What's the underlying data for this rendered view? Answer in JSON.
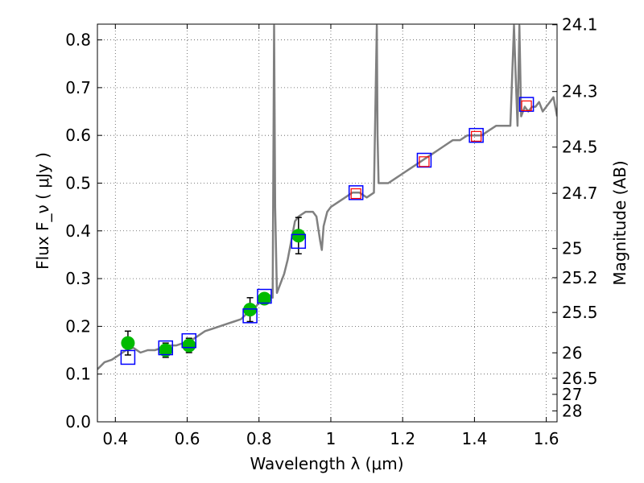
{
  "chart_data": {
    "type": "scatter",
    "xlabel": "Wavelength  λ (μm)",
    "ylabel": "Flux  F_ν  ( μJy )",
    "y2label": "Magnitude (AB)",
    "xlim": [
      0.35,
      1.63
    ],
    "ylim": [
      0.0,
      0.833
    ],
    "grid": true,
    "x_ticks": [
      0.4,
      0.6,
      0.8,
      1.0,
      1.2,
      1.4,
      1.6
    ],
    "x_tick_labels": [
      "0.4",
      "0.6",
      "0.8",
      "1",
      "1.2",
      "1.4",
      "1.6"
    ],
    "y_ticks": [
      0.0,
      0.1,
      0.2,
      0.3,
      0.4,
      0.5,
      0.6,
      0.7,
      0.8
    ],
    "y_tick_labels": [
      "0.0",
      "0.1",
      "0.2",
      "0.3",
      "0.4",
      "0.5",
      "0.6",
      "0.7",
      "0.8"
    ],
    "y2_ticks": [
      24.1,
      24.3,
      24.5,
      24.7,
      25,
      25.2,
      25.5,
      26,
      26.5,
      27,
      28
    ],
    "y2_tick_labels": [
      "24.1",
      "24.3",
      "24.5",
      "24.7",
      "25",
      "25.2",
      "25.5",
      "26",
      "26.5",
      "27",
      "28"
    ],
    "model_spectrum": {
      "color": "#808080",
      "x": [
        0.35,
        0.37,
        0.39,
        0.41,
        0.43,
        0.45,
        0.47,
        0.49,
        0.51,
        0.53,
        0.55,
        0.57,
        0.59,
        0.61,
        0.63,
        0.65,
        0.67,
        0.69,
        0.71,
        0.73,
        0.75,
        0.77,
        0.79,
        0.81,
        0.83,
        0.838,
        0.842,
        0.845,
        0.85,
        0.86,
        0.87,
        0.88,
        0.89,
        0.9,
        0.91,
        0.93,
        0.95,
        0.96,
        0.97,
        0.975,
        0.98,
        0.99,
        1.0,
        1.02,
        1.04,
        1.06,
        1.08,
        1.1,
        1.12,
        1.128,
        1.13,
        1.133,
        1.14,
        1.16,
        1.18,
        1.2,
        1.22,
        1.24,
        1.26,
        1.28,
        1.3,
        1.32,
        1.34,
        1.36,
        1.38,
        1.4,
        1.42,
        1.44,
        1.46,
        1.48,
        1.5,
        1.51,
        1.515,
        1.52,
        1.525,
        1.53,
        1.54,
        1.55,
        1.56,
        1.57,
        1.58,
        1.59,
        1.6,
        1.61,
        1.62,
        1.63
      ],
      "y": [
        0.11,
        0.125,
        0.13,
        0.14,
        0.15,
        0.155,
        0.145,
        0.15,
        0.15,
        0.155,
        0.16,
        0.16,
        0.165,
        0.17,
        0.18,
        0.19,
        0.195,
        0.2,
        0.205,
        0.21,
        0.215,
        0.23,
        0.24,
        0.26,
        0.265,
        0.26,
        0.83,
        0.45,
        0.27,
        0.29,
        0.31,
        0.34,
        0.38,
        0.42,
        0.43,
        0.44,
        0.44,
        0.43,
        0.38,
        0.36,
        0.41,
        0.44,
        0.45,
        0.46,
        0.47,
        0.48,
        0.48,
        0.47,
        0.48,
        0.83,
        0.6,
        0.5,
        0.5,
        0.5,
        0.51,
        0.52,
        0.53,
        0.54,
        0.55,
        0.56,
        0.57,
        0.58,
        0.59,
        0.59,
        0.6,
        0.6,
        0.6,
        0.61,
        0.62,
        0.62,
        0.62,
        0.83,
        0.72,
        0.62,
        0.83,
        0.64,
        0.66,
        0.65,
        0.66,
        0.66,
        0.67,
        0.65,
        0.66,
        0.67,
        0.68,
        0.64
      ]
    },
    "observed": {
      "color": "#00bb00",
      "x": [
        0.435,
        0.54,
        0.605,
        0.775,
        0.815,
        0.91
      ],
      "y": [
        0.165,
        0.15,
        0.16,
        0.235,
        0.258,
        0.39
      ],
      "yerr": [
        0.025,
        0.015,
        0.015,
        0.025,
        0.01,
        0.038
      ]
    },
    "model_photometry": {
      "color": "#0000ff",
      "x": [
        0.435,
        0.54,
        0.605,
        0.775,
        0.815,
        0.91,
        1.07,
        1.26,
        1.405,
        1.545
      ],
      "y": [
        0.135,
        0.155,
        0.17,
        0.222,
        0.263,
        0.378,
        0.48,
        0.548,
        0.6,
        0.665
      ]
    },
    "upper_limits": {
      "color": "#ff0000",
      "x": [
        1.07,
        1.26,
        1.405,
        1.545
      ],
      "y": [
        0.478,
        0.545,
        0.598,
        0.662
      ]
    }
  }
}
